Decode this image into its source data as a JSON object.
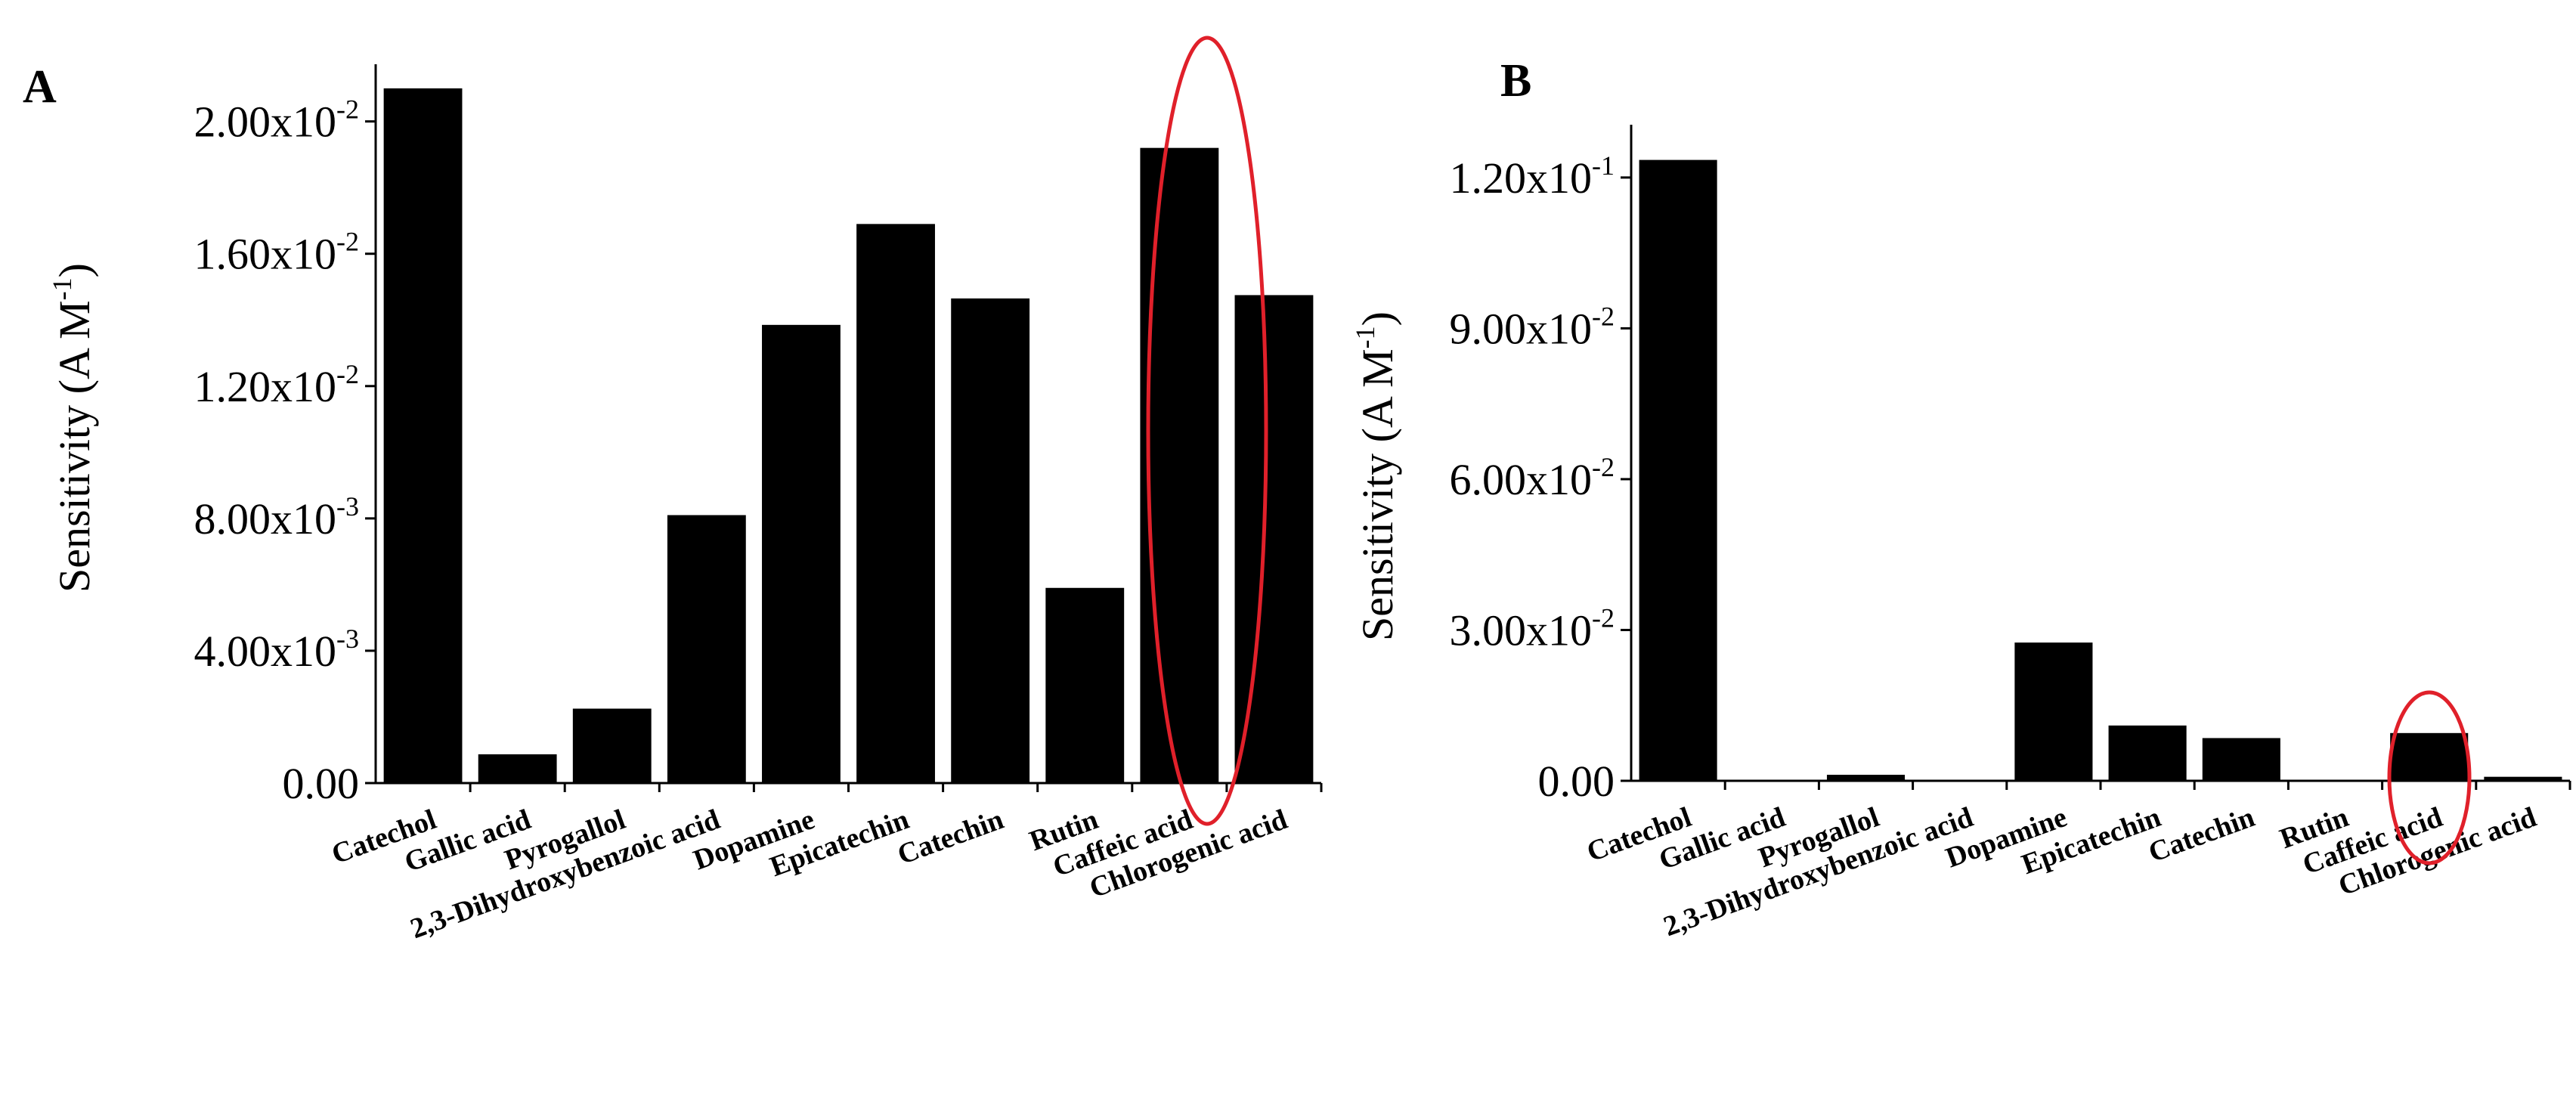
{
  "chart_data": [
    {
      "type": "bar",
      "panel_label": "A",
      "ylabel": "Sensitivity (A M",
      "ylabel_sup": "-1",
      "ylabel_end": ")",
      "categories": [
        "Catechol",
        "Gallic acid",
        "Pyrogallol",
        "2,3-Dihydroxybenzoic acid",
        "Dopamine",
        "Epicatechin",
        "Catechin",
        "Rutin",
        "Caffeic acid",
        "Chlorogenic acid"
      ],
      "values": [
        0.021,
        0.00087,
        0.00225,
        0.0081,
        0.01385,
        0.0169,
        0.01465,
        0.0059,
        0.0192,
        0.01475
      ],
      "ylim": [
        0,
        0.0215
      ],
      "yticks": [
        {
          "value": 0,
          "mantissa": "0.00",
          "exp": ""
        },
        {
          "value": 0.004,
          "mantissa": "4.00x10",
          "exp": "-3"
        },
        {
          "value": 0.008,
          "mantissa": "8.00x10",
          "exp": "-3"
        },
        {
          "value": 0.012,
          "mantissa": "1.20x10",
          "exp": "-2"
        },
        {
          "value": 0.016,
          "mantissa": "1.60x10",
          "exp": "-2"
        },
        {
          "value": 0.02,
          "mantissa": "2.00x10",
          "exp": "-2"
        }
      ],
      "bar_color": "#000000",
      "highlight": {
        "category": "Caffeic acid",
        "color": "#e0202a"
      },
      "grid": false
    },
    {
      "type": "bar",
      "panel_label": "B",
      "ylabel": "Sensitivity (A M",
      "ylabel_sup": "-1",
      "ylabel_end": ")",
      "categories": [
        "Catechol",
        "Gallic acid",
        "Pyrogallol",
        "2,3-Dihydroxybenzoic acid",
        "Dopamine",
        "Epicatechin",
        "Catechin",
        "Rutin",
        "Caffeic acid",
        "Chlorogenic acid"
      ],
      "values": [
        0.1235,
        0.0,
        0.0012,
        0.0,
        0.0275,
        0.011,
        0.0085,
        0.0,
        0.0095,
        0.0008
      ],
      "ylim": [
        0,
        0.129
      ],
      "yticks": [
        {
          "value": 0,
          "mantissa": "0.00",
          "exp": ""
        },
        {
          "value": 0.03,
          "mantissa": "3.00x10",
          "exp": "-2"
        },
        {
          "value": 0.06,
          "mantissa": "6.00x10",
          "exp": "-2"
        },
        {
          "value": 0.09,
          "mantissa": "9.00x10",
          "exp": "-2"
        },
        {
          "value": 0.12,
          "mantissa": "1.20x10",
          "exp": "-1"
        }
      ],
      "bar_color": "#000000",
      "highlight": {
        "category": "Caffeic acid",
        "color": "#e0202a"
      },
      "grid": false
    }
  ]
}
